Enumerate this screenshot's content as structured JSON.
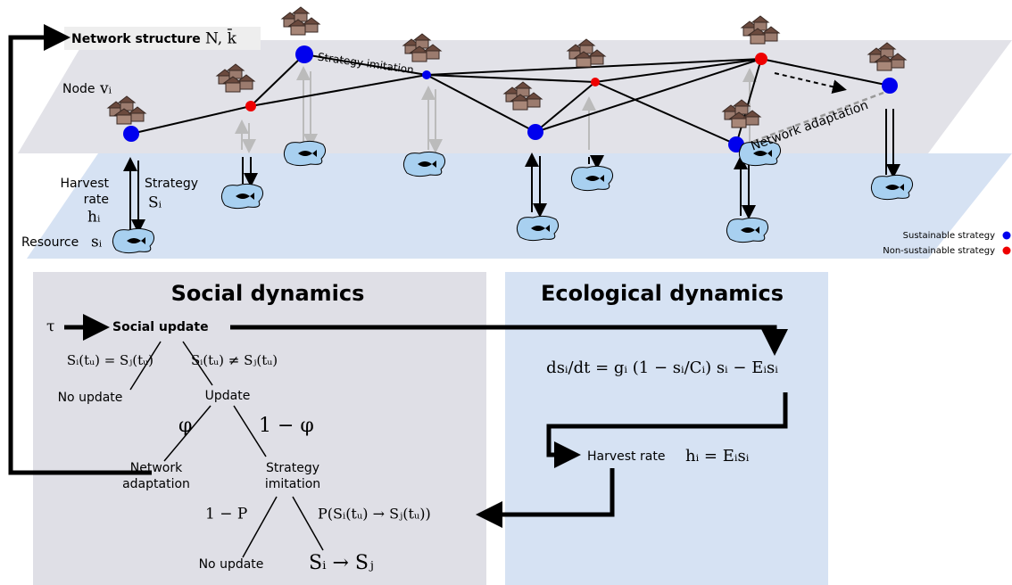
{
  "network": {
    "title": "Network structure",
    "params": "N, k̄",
    "node_label": "Node",
    "node_symbol": "vᵢ",
    "strategy_imitation": "Strategy imitation",
    "network_adaptation": "Network adaptation",
    "harvest_label": [
      "Harvest",
      "rate"
    ],
    "harvest_symbol": "hᵢ",
    "strategy_label": "Strategy",
    "strategy_symbol": "Sᵢ",
    "resource_label": "Resource",
    "resource_symbol": "sᵢ"
  },
  "legend": [
    "Sustainable strategy",
    "Non-sustainable strategy"
  ],
  "social": {
    "title": "Social dynamics",
    "tau": "τ",
    "update": "Social update",
    "equal": "Sᵢ(tᵤ) = Sⱼ(tᵤ)",
    "unequal": "Sᵢ(tᵤ) ≠ Sⱼ(tᵤ)",
    "no_update_1": "No update",
    "update_node": "Update",
    "phi": "φ",
    "one_minus_phi": "1 − φ",
    "network_adaptation": [
      "Network",
      "adaptation"
    ],
    "strategy_imitation": [
      "Strategy",
      "imitation"
    ],
    "one_minus_p": "1 − P",
    "prob": "P(Sᵢ(tᵤ) → Sⱼ(tᵤ))",
    "no_update_2": "No update",
    "switch": "Sᵢ → Sⱼ"
  },
  "ecological": {
    "title": "Ecological dynamics",
    "equation": "dsᵢ/dt = gᵢ (1 − sᵢ/Cᵢ) sᵢ − Eᵢsᵢ",
    "harvest_label": "Harvest rate",
    "harvest_equation": "hᵢ = Eᵢsᵢ"
  }
}
